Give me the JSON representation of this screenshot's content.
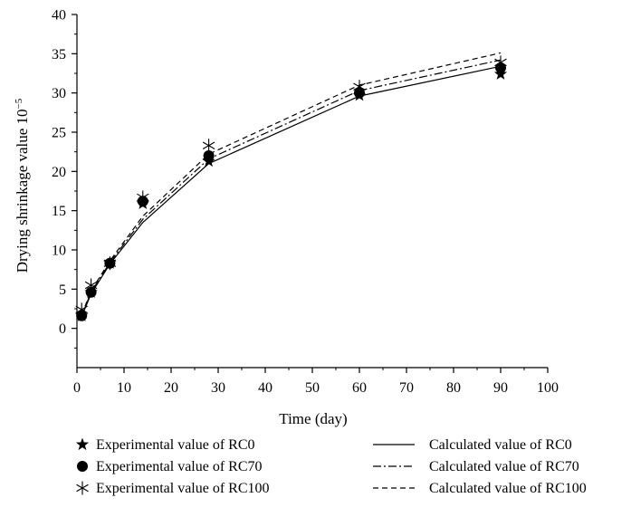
{
  "chart_data": {
    "type": "line",
    "title": "",
    "xlabel": "Time (day)",
    "ylabel": "Drying shrinkage value 10",
    "ylabel_exponent": "−5",
    "xlim": [
      0,
      100
    ],
    "ylim": [
      -5,
      40
    ],
    "x_ticks": [
      0,
      10,
      20,
      30,
      40,
      50,
      60,
      70,
      80,
      90,
      100
    ],
    "y_ticks": [
      0,
      5,
      10,
      15,
      20,
      25,
      30,
      35,
      40
    ],
    "grid": false,
    "legend_position": "bottom",
    "experimental_series": [
      {
        "name": "Experimental value of RC0",
        "marker": "star",
        "x": [
          1,
          3,
          7,
          14,
          28,
          60,
          90
        ],
        "y": [
          1.6,
          4.6,
          8.3,
          15.9,
          21.3,
          29.7,
          32.4
        ]
      },
      {
        "name": "Experimental value of RC70",
        "marker": "circle",
        "x": [
          1,
          3,
          7,
          14,
          28,
          60,
          90
        ],
        "y": [
          1.6,
          4.6,
          8.3,
          16.2,
          22.0,
          30.0,
          33.2
        ]
      },
      {
        "name": "Experimental value of RC100",
        "marker": "asterisk",
        "x": [
          1,
          3,
          7,
          14,
          28,
          60,
          90
        ],
        "y": [
          2.4,
          5.5,
          8.3,
          16.7,
          23.3,
          30.8,
          33.9
        ]
      }
    ],
    "calculated_series": [
      {
        "name": "Calculated value of RC0",
        "dash": "solid",
        "x": [
          1,
          3,
          7,
          14,
          28,
          60,
          90
        ],
        "y": [
          1.5,
          4.4,
          8.2,
          13.5,
          21.0,
          29.6,
          33.4
        ]
      },
      {
        "name": "Calculated value of RC70",
        "dash": "dashdot",
        "x": [
          1,
          3,
          7,
          14,
          28,
          60,
          90
        ],
        "y": [
          1.6,
          4.6,
          8.4,
          13.9,
          21.6,
          30.3,
          34.2
        ]
      },
      {
        "name": "Calculated value of RC100",
        "dash": "dashed",
        "x": [
          1,
          3,
          7,
          14,
          28,
          60,
          90
        ],
        "y": [
          1.7,
          4.8,
          8.6,
          14.3,
          22.2,
          31.0,
          35.1
        ]
      }
    ]
  }
}
